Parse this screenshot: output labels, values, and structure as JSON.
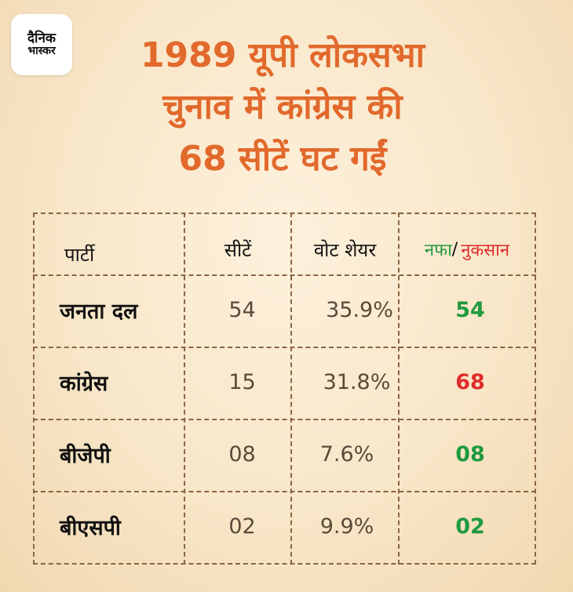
{
  "brand": {
    "logo_line1": "दैनिक",
    "logo_line2": "भास्कर"
  },
  "title": {
    "line1": "1989 यूपी लोकसभा",
    "line2": "चुनाव में कांग्रेस की",
    "line3": "68 सीटें घट गईं"
  },
  "table": {
    "headers": {
      "party": "पार्टी",
      "seats": "सीटें",
      "vote_share": "वोट शेयर",
      "gain": "नफा",
      "separator": "/",
      "loss": "नुकसान"
    },
    "rows": [
      {
        "party": "जनता दल",
        "seats": "54",
        "vote_share": "35.9%",
        "change": "54",
        "change_type": "gain"
      },
      {
        "party": "कांग्रेस",
        "seats": "15",
        "vote_share": "31.8%",
        "change": "68",
        "change_type": "loss"
      },
      {
        "party": "बीजेपी",
        "seats": "08",
        "vote_share": "7.6%",
        "change": "08",
        "change_type": "gain"
      },
      {
        "party": "बीएसपी",
        "seats": "02",
        "vote_share": "9.9%",
        "change": "02",
        "change_type": "gain"
      }
    ]
  },
  "colors": {
    "title": "#e2692c",
    "gain": "#1f9a3e",
    "loss": "#e02b2b",
    "border": "#8a6442",
    "number": "#5a4a38"
  }
}
